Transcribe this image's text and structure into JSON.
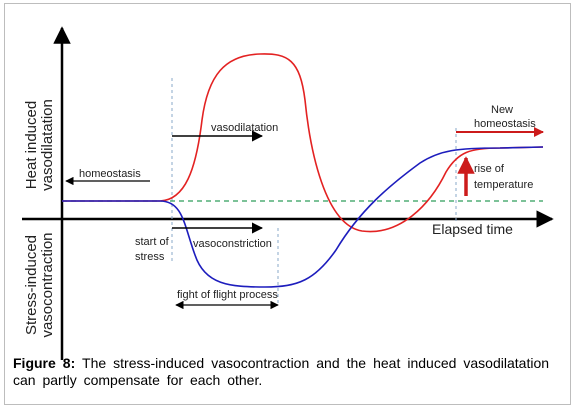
{
  "diagram": {
    "y_axis_top_label": [
      "Heat induced",
      "vasodilatation"
    ],
    "y_axis_bottom_label": [
      "Stress-induced",
      "vasocontraction"
    ],
    "x_axis_label": "Elapsed time",
    "labels": {
      "homeostasis": "homeostasis",
      "vasodilatation": "vasodilatation",
      "vasoconstriction": "vasoconstriction",
      "start_of_stress": [
        "start of",
        "stress"
      ],
      "fight_flight": "fight of flight process",
      "new_homeostasis": [
        "New",
        "homeostasis"
      ],
      "rise_of_temperature": [
        "rise of",
        "temperature"
      ]
    },
    "colors": {
      "heat_curve": "#e32222",
      "stress_curve": "#1d1dbd",
      "baseline": "#2e9e5a",
      "marker_lines": "#8aa8c8",
      "axis": "#000000",
      "arrow_red": "#cc1b1b"
    }
  },
  "caption": {
    "label": "Figure 8:",
    "text": "The stress-induced vasocontraction and the heat induced vasodilatation can partly compensate for each other."
  }
}
